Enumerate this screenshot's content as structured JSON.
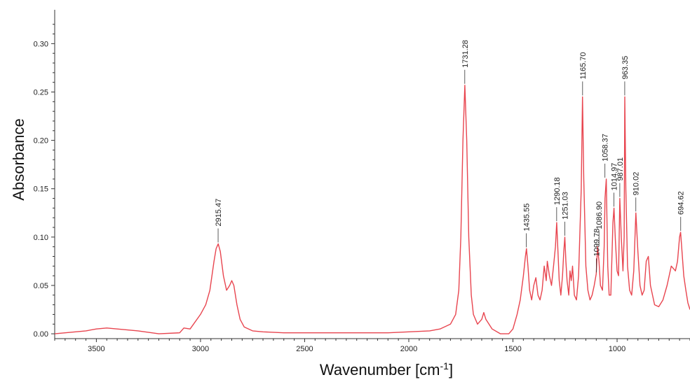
{
  "chart_data": {
    "type": "line",
    "title": "",
    "xlabel": "Wavenumber [cm",
    "xlabel_sup": "-1",
    "xlabel_close": "]",
    "ylabel": "Absorbance",
    "xlim": [
      3700,
      650
    ],
    "ylim": [
      -0.005,
      0.335
    ],
    "x_reversed": true,
    "grid": false,
    "legend": "none",
    "line_color": "#e8454f",
    "x_ticks": [
      3500,
      3000,
      2500,
      2000,
      1500,
      1000
    ],
    "x_tick_labels": [
      "3500",
      "3000",
      "2500",
      "2000",
      "1500",
      "1000"
    ],
    "y_ticks": [
      0.0,
      0.05,
      0.1,
      0.15,
      0.2,
      0.25,
      0.3
    ],
    "y_tick_labels": [
      "0.00",
      "0.05",
      "0.10",
      "0.15",
      "0.20",
      "0.25",
      "0.30"
    ],
    "series": [
      {
        "x": [
          3700,
          3650,
          3600,
          3550,
          3500,
          3450,
          3400,
          3300,
          3200,
          3100,
          3080,
          3050,
          3000,
          2975,
          2955,
          2935,
          2925,
          2915,
          2905,
          2890,
          2875,
          2860,
          2850,
          2840,
          2825,
          2810,
          2790,
          2750,
          2700,
          2600,
          2500,
          2400,
          2300,
          2200,
          2100,
          2000,
          1900,
          1850,
          1800,
          1775,
          1760,
          1750,
          1740,
          1731,
          1722,
          1712,
          1700,
          1690,
          1670,
          1650,
          1640,
          1630,
          1600,
          1560,
          1520,
          1500,
          1480,
          1465,
          1450,
          1440,
          1435,
          1428,
          1420,
          1410,
          1400,
          1390,
          1380,
          1370,
          1360,
          1350,
          1340,
          1335,
          1325,
          1315,
          1305,
          1296,
          1290,
          1285,
          1278,
          1270,
          1262,
          1256,
          1251,
          1246,
          1240,
          1232,
          1226,
          1220,
          1214,
          1205,
          1195,
          1185,
          1172,
          1166,
          1160,
          1150,
          1140,
          1130,
          1120,
          1110,
          1100,
          1094,
          1087,
          1080,
          1070,
          1062,
          1058,
          1052,
          1045,
          1038,
          1030,
          1020,
          1015,
          1008,
          1000,
          993,
          987,
          980,
          972,
          966,
          963,
          958,
          950,
          940,
          930,
          920,
          910,
          900,
          890,
          880,
          870,
          860,
          850,
          840,
          820,
          800,
          780,
          760,
          740,
          720,
          710,
          700,
          695,
          690,
          680,
          670,
          660,
          650
        ],
        "y": [
          0.0,
          0.001,
          0.002,
          0.003,
          0.005,
          0.006,
          0.005,
          0.003,
          0.0,
          0.001,
          0.006,
          0.005,
          0.02,
          0.03,
          0.045,
          0.075,
          0.088,
          0.093,
          0.085,
          0.06,
          0.045,
          0.05,
          0.055,
          0.05,
          0.03,
          0.015,
          0.007,
          0.003,
          0.002,
          0.001,
          0.001,
          0.001,
          0.001,
          0.001,
          0.001,
          0.002,
          0.003,
          0.005,
          0.01,
          0.02,
          0.045,
          0.1,
          0.2,
          0.257,
          0.2,
          0.1,
          0.04,
          0.02,
          0.01,
          0.015,
          0.022,
          0.015,
          0.005,
          0.0,
          0.0,
          0.005,
          0.02,
          0.035,
          0.06,
          0.08,
          0.088,
          0.07,
          0.045,
          0.035,
          0.05,
          0.058,
          0.04,
          0.035,
          0.045,
          0.07,
          0.055,
          0.075,
          0.06,
          0.05,
          0.07,
          0.09,
          0.115,
          0.09,
          0.055,
          0.04,
          0.06,
          0.085,
          0.1,
          0.075,
          0.055,
          0.04,
          0.065,
          0.055,
          0.07,
          0.04,
          0.035,
          0.06,
          0.15,
          0.245,
          0.16,
          0.07,
          0.045,
          0.035,
          0.04,
          0.05,
          0.062,
          0.09,
          0.075,
          0.05,
          0.045,
          0.09,
          0.14,
          0.16,
          0.07,
          0.04,
          0.04,
          0.115,
          0.13,
          0.095,
          0.065,
          0.06,
          0.14,
          0.1,
          0.065,
          0.1,
          0.245,
          0.15,
          0.07,
          0.045,
          0.04,
          0.065,
          0.125,
          0.085,
          0.05,
          0.04,
          0.045,
          0.075,
          0.08,
          0.05,
          0.03,
          0.028,
          0.035,
          0.05,
          0.07,
          0.065,
          0.075,
          0.1,
          0.105,
          0.09,
          0.06,
          0.045,
          0.032,
          0.025
        ]
      }
    ],
    "annotations": [
      {
        "label": "2915.47",
        "x": 2915.47,
        "y": 0.093
      },
      {
        "label": "1731.28",
        "x": 1731.28,
        "y": 0.257
      },
      {
        "label": "1435.55",
        "x": 1435.55,
        "y": 0.088
      },
      {
        "label": "1290.18",
        "x": 1290.18,
        "y": 0.115
      },
      {
        "label": "1251.03",
        "x": 1251.03,
        "y": 0.1
      },
      {
        "label": "1165.70",
        "x": 1165.7,
        "y": 0.245
      },
      {
        "label": "1099.78",
        "x": 1099.78,
        "y": 0.062
      },
      {
        "label": "1086.90",
        "x": 1086.9,
        "y": 0.09
      },
      {
        "label": "1058.37",
        "x": 1058.37,
        "y": 0.16
      },
      {
        "label": "1014.97",
        "x": 1014.97,
        "y": 0.13
      },
      {
        "label": "987.01",
        "x": 987.01,
        "y": 0.14
      },
      {
        "label": "963.35",
        "x": 963.35,
        "y": 0.245
      },
      {
        "label": "910.02",
        "x": 910.02,
        "y": 0.125
      },
      {
        "label": "694.62",
        "x": 694.62,
        "y": 0.105
      }
    ]
  }
}
